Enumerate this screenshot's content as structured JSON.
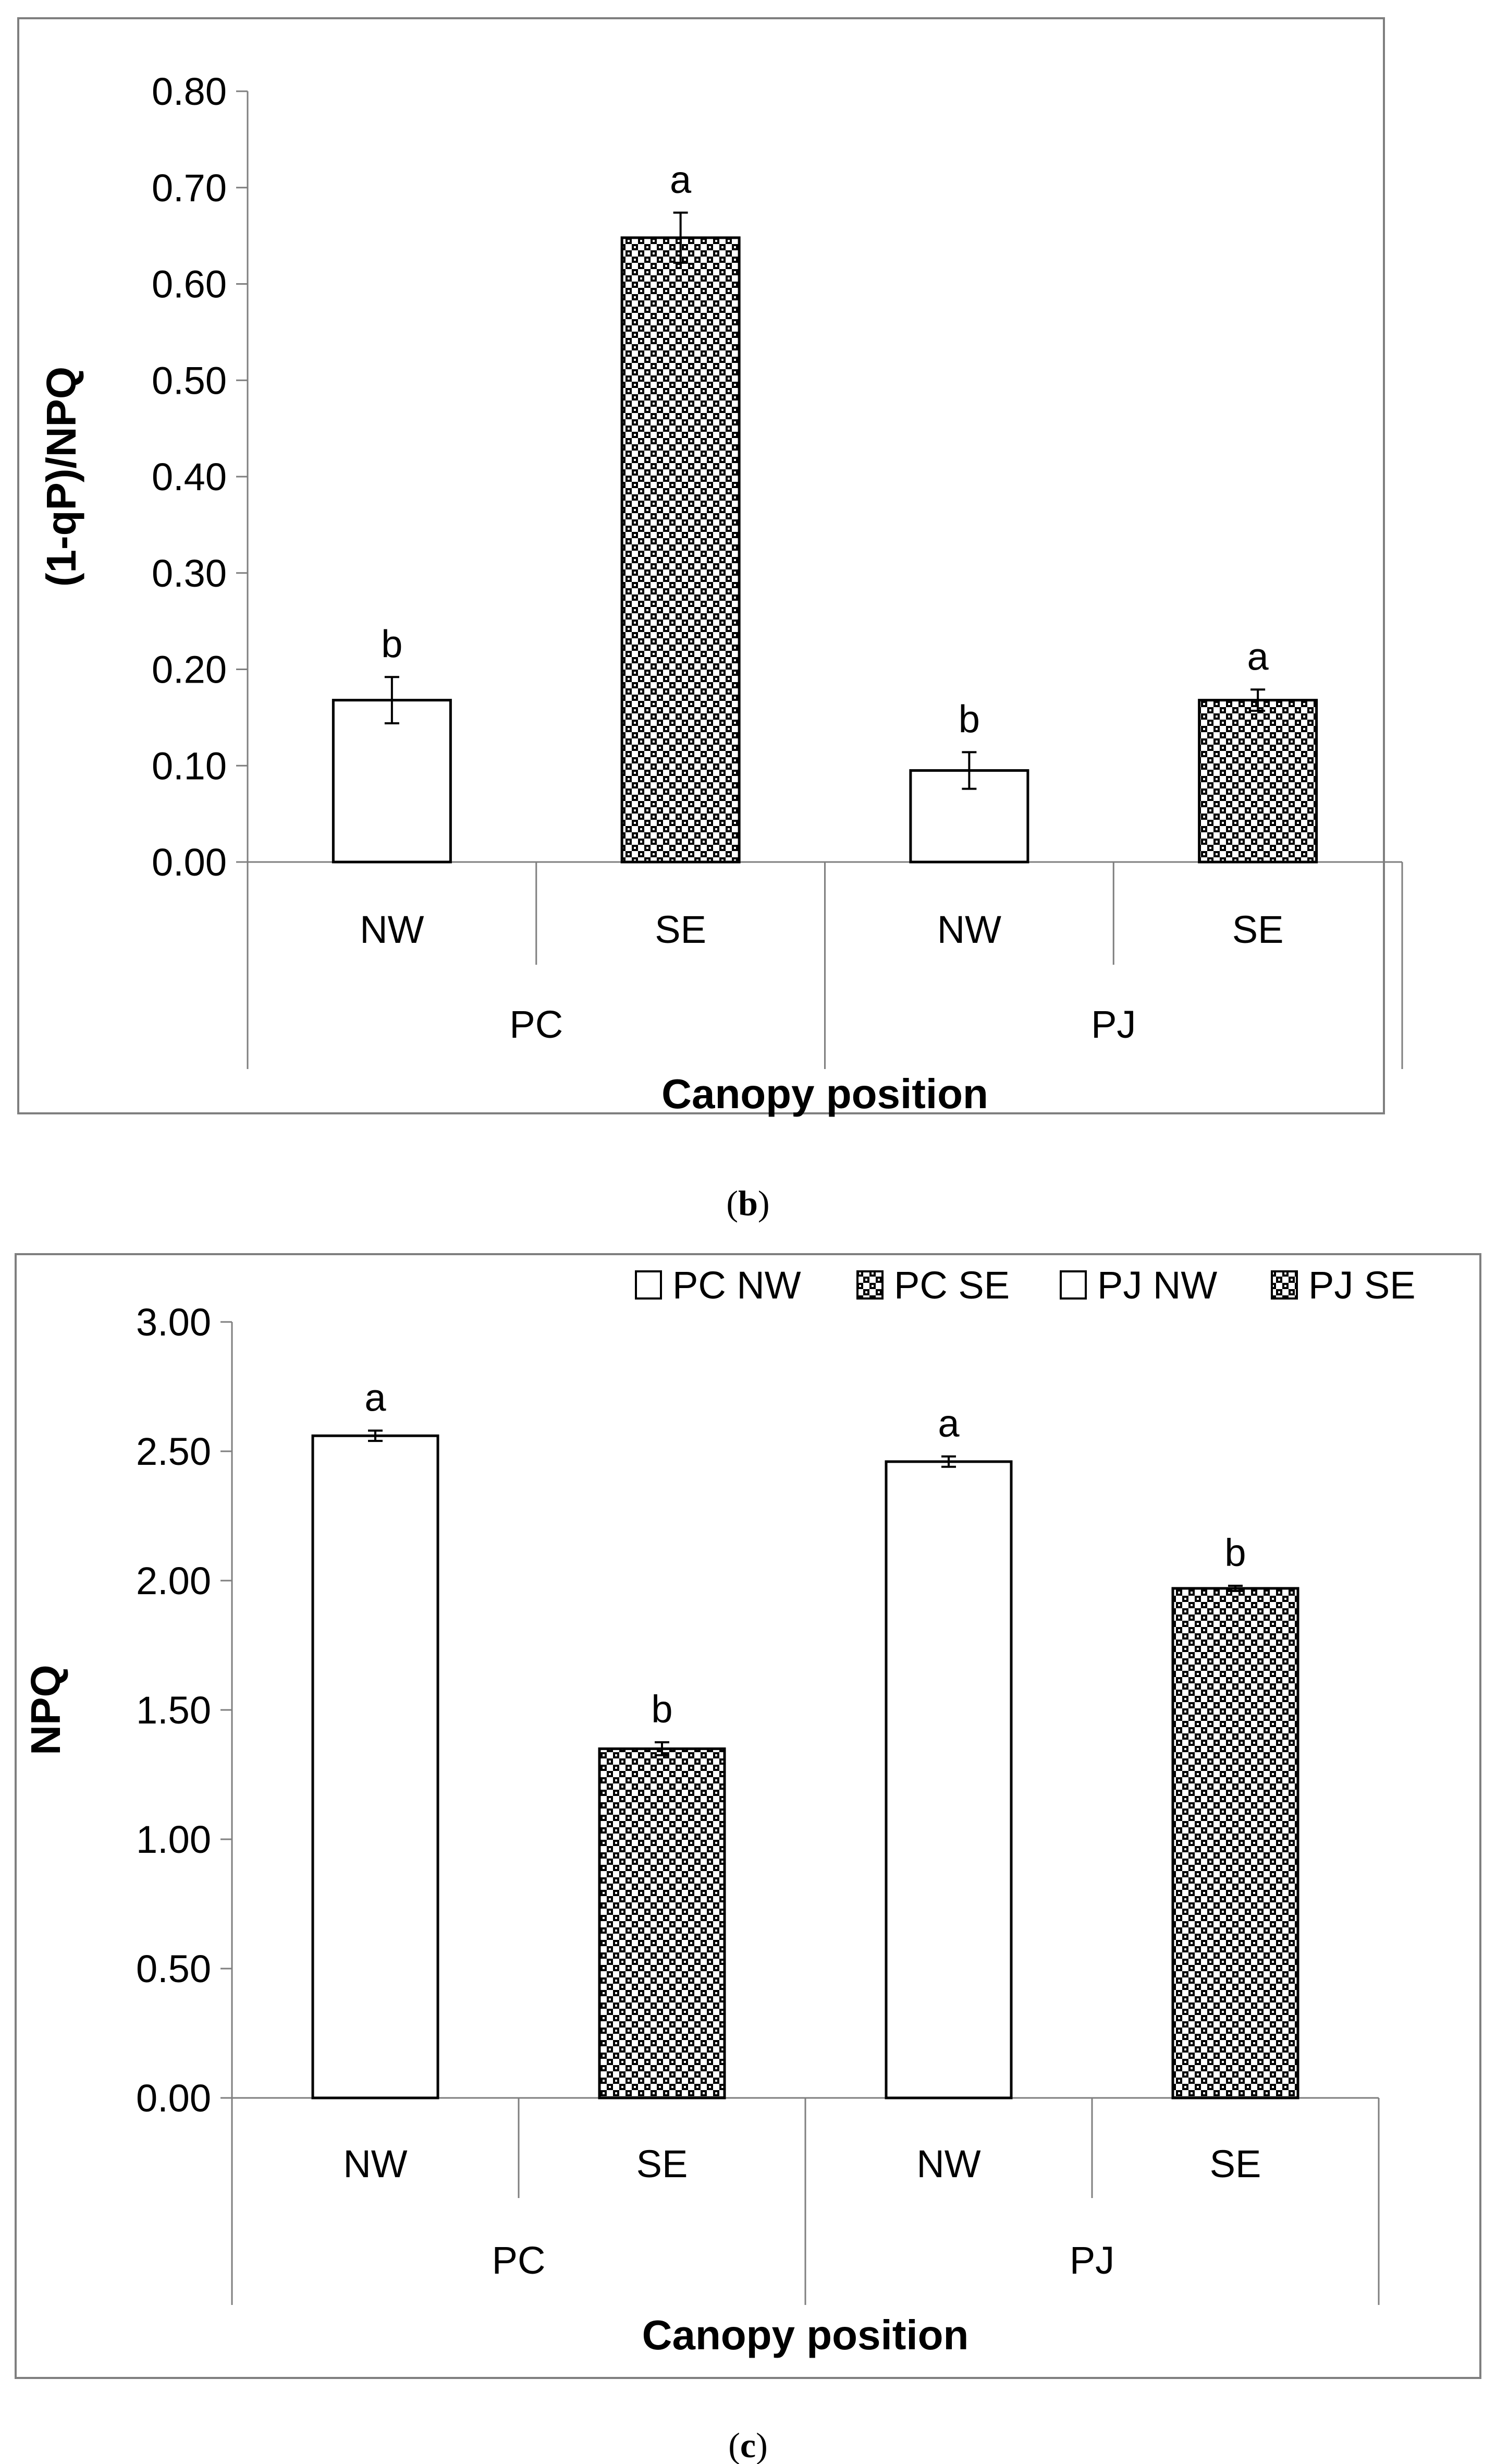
{
  "panels": [
    {
      "id": "b",
      "caption_letter": "b",
      "chart_data": {
        "type": "bar",
        "title": "",
        "ylabel": "(1-qP)/NPQ",
        "xlabel": "Canopy position",
        "ylim": [
          0,
          0.8
        ],
        "ytick_step": 0.1,
        "ytick_labels": [
          "0.00",
          "0.10",
          "0.20",
          "0.30",
          "0.40",
          "0.50",
          "0.60",
          "0.70",
          "0.80"
        ],
        "groups": [
          "PC",
          "PJ"
        ],
        "categories": [
          "NW",
          "SE",
          "NW",
          "SE"
        ],
        "values": [
          0.168,
          0.648,
          0.095,
          0.168
        ],
        "errors": [
          0.024,
          0.026,
          0.019,
          0.011
        ],
        "significance": [
          "b",
          "a",
          "b",
          "a"
        ],
        "fills": [
          "white",
          "pattern",
          "white",
          "pattern"
        ],
        "legend": null
      }
    },
    {
      "id": "c",
      "caption_letter": "c",
      "chart_data": {
        "type": "bar",
        "title": "",
        "ylabel": "NPQ",
        "xlabel": "Canopy position",
        "ylim": [
          0,
          3.0
        ],
        "ytick_step": 0.5,
        "ytick_labels": [
          "0.00",
          "0.50",
          "1.00",
          "1.50",
          "2.00",
          "2.50",
          "3.00"
        ],
        "groups": [
          "PC",
          "PJ"
        ],
        "categories": [
          "NW",
          "SE",
          "NW",
          "SE"
        ],
        "values": [
          2.56,
          1.35,
          2.46,
          1.97
        ],
        "errors": [
          0.02,
          0.025,
          0.02,
          0.01
        ],
        "significance": [
          "a",
          "b",
          "a",
          "b"
        ],
        "fills": [
          "white",
          "pattern",
          "white",
          "pattern"
        ],
        "legend": [
          "PC NW",
          "PC SE",
          "PJ NW",
          "PJ SE"
        ]
      }
    }
  ],
  "colors": {
    "frame": "#7f7f7f",
    "bar_stroke": "#000000",
    "pattern_dark": "#000000",
    "pattern_light": "#ffffff"
  }
}
